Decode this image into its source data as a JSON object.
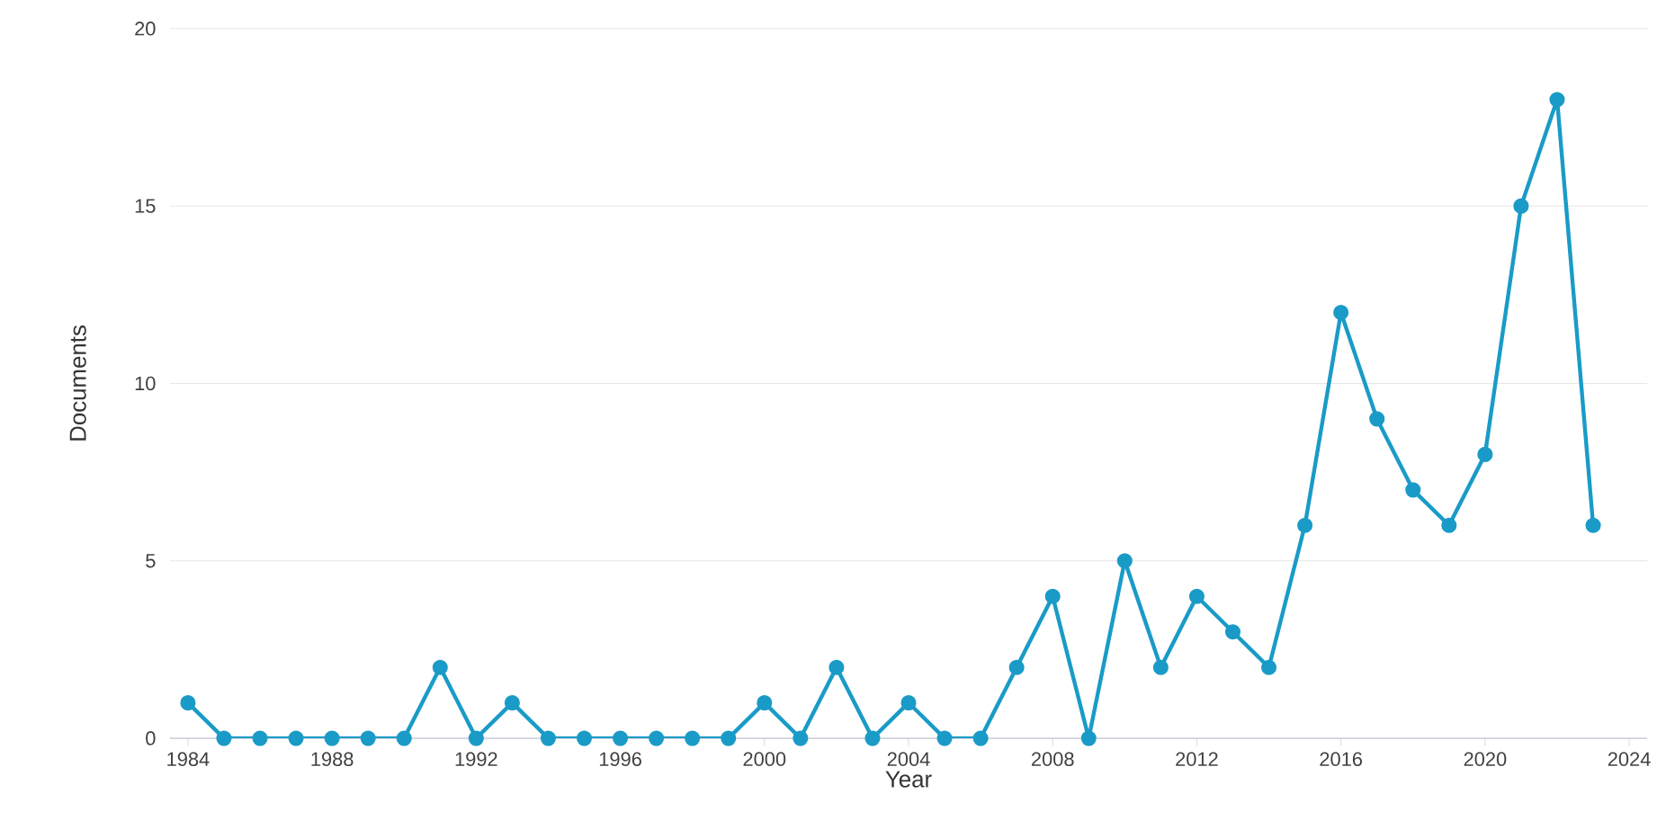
{
  "chart_data": {
    "type": "line",
    "xlabel": "Year",
    "ylabel": "Documents",
    "x": [
      1984,
      1985,
      1986,
      1987,
      1988,
      1989,
      1990,
      1991,
      1992,
      1993,
      1994,
      1995,
      1996,
      1997,
      1998,
      1999,
      2000,
      2001,
      2002,
      2003,
      2004,
      2005,
      2006,
      2007,
      2008,
      2009,
      2010,
      2011,
      2012,
      2013,
      2014,
      2015,
      2016,
      2017,
      2018,
      2019,
      2020,
      2021,
      2022,
      2023
    ],
    "series": [
      {
        "color": "#1a9bc7",
        "values": [
          1,
          0,
          0,
          0,
          0,
          0,
          0,
          2,
          0,
          1,
          0,
          0,
          0,
          0,
          0,
          0,
          1,
          0,
          2,
          0,
          1,
          0,
          0,
          2,
          4,
          0,
          5,
          2,
          4,
          3,
          2,
          6,
          12,
          9,
          7,
          6,
          8,
          15,
          18,
          6
        ]
      }
    ],
    "xlim": [
      1983.5,
      2024.5
    ],
    "xticks": [
      1984,
      1988,
      1992,
      1996,
      2000,
      2004,
      2008,
      2012,
      2016,
      2020,
      2024
    ],
    "ylim": [
      0,
      20
    ],
    "yticks": [
      0,
      5,
      10,
      15,
      20
    ],
    "grid": "y",
    "marker": "circle",
    "line_style": "solid"
  }
}
